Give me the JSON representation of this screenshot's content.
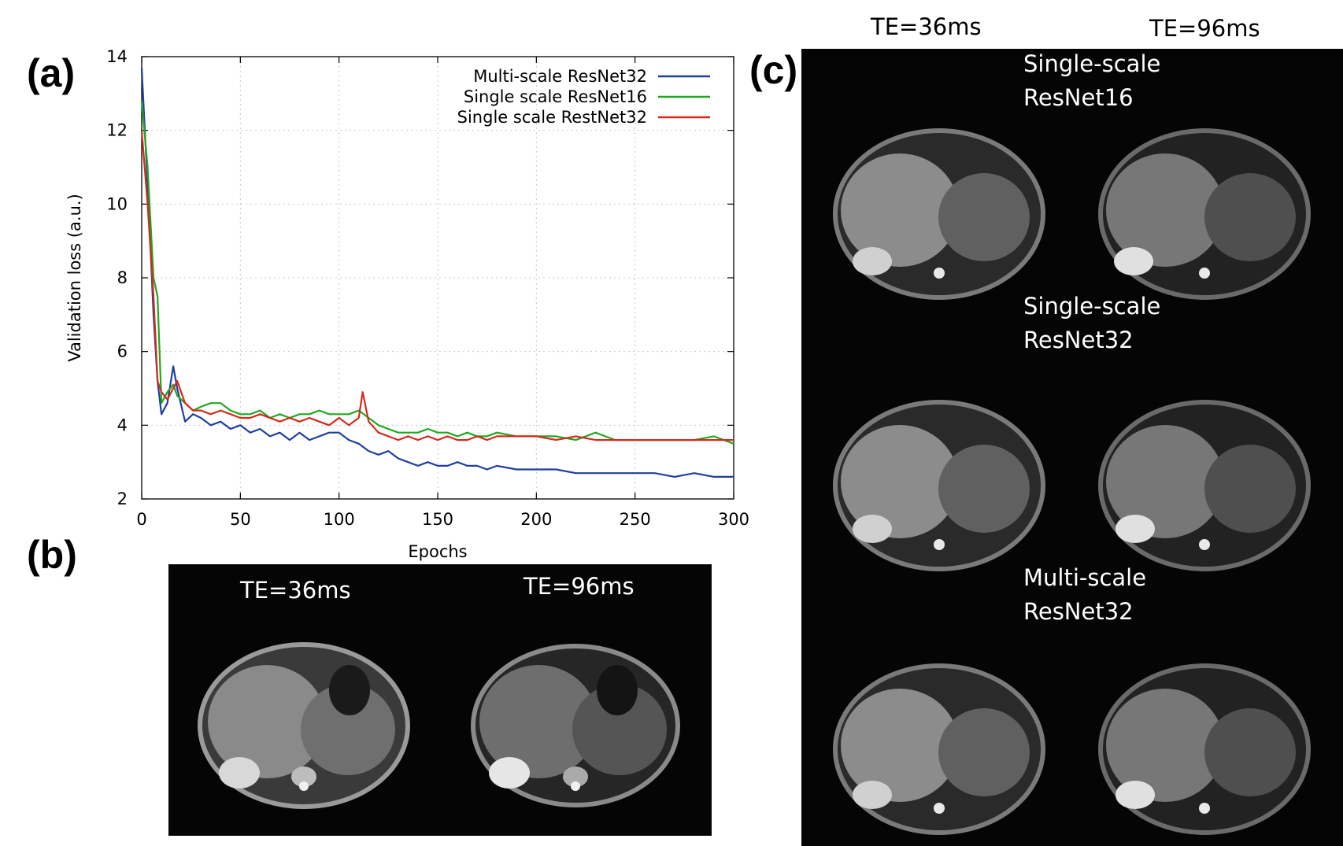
{
  "panels": {
    "a": "(a)",
    "b": "(b)",
    "c": "(c)"
  },
  "chart_data": {
    "type": "line",
    "xlabel": "Epochs",
    "ylabel": "Validation loss (a.u.)",
    "xlim": [
      0,
      300
    ],
    "ylim": [
      2,
      14
    ],
    "xticks": [
      0,
      50,
      100,
      150,
      200,
      250,
      300
    ],
    "yticks": [
      2,
      4,
      6,
      8,
      10,
      12,
      14
    ],
    "grid": true,
    "legend_position": "top-right",
    "series": [
      {
        "name": "Multi-scale ResNet32",
        "color": "#1f3f9e",
        "x": [
          0,
          3,
          6,
          8,
          10,
          13,
          16,
          18,
          22,
          26,
          30,
          35,
          40,
          45,
          50,
          55,
          60,
          65,
          70,
          75,
          80,
          85,
          90,
          95,
          100,
          105,
          110,
          115,
          120,
          125,
          130,
          135,
          140,
          145,
          150,
          155,
          160,
          165,
          170,
          175,
          180,
          190,
          200,
          210,
          220,
          230,
          240,
          250,
          260,
          270,
          280,
          290,
          300
        ],
        "y": [
          13.7,
          10.5,
          7.0,
          5.2,
          4.3,
          4.6,
          5.6,
          5.0,
          4.1,
          4.3,
          4.2,
          4.0,
          4.1,
          3.9,
          4.0,
          3.8,
          3.9,
          3.7,
          3.8,
          3.6,
          3.8,
          3.6,
          3.7,
          3.8,
          3.8,
          3.6,
          3.5,
          3.3,
          3.2,
          3.3,
          3.1,
          3.0,
          2.9,
          3.0,
          2.9,
          2.9,
          3.0,
          2.9,
          2.9,
          2.8,
          2.9,
          2.8,
          2.8,
          2.8,
          2.7,
          2.7,
          2.7,
          2.7,
          2.7,
          2.6,
          2.7,
          2.6,
          2.6
        ]
      },
      {
        "name": "Single scale ResNet16",
        "color": "#1fa81f",
        "x": [
          0,
          3,
          6,
          8,
          10,
          13,
          16,
          18,
          22,
          26,
          30,
          35,
          40,
          45,
          50,
          55,
          60,
          65,
          70,
          75,
          80,
          85,
          90,
          95,
          100,
          105,
          110,
          115,
          120,
          125,
          130,
          135,
          140,
          145,
          150,
          155,
          160,
          165,
          170,
          175,
          180,
          190,
          200,
          210,
          220,
          230,
          240,
          250,
          260,
          270,
          280,
          290,
          300
        ],
        "y": [
          12.8,
          11.0,
          8.0,
          7.5,
          4.6,
          4.9,
          5.1,
          4.8,
          4.6,
          4.4,
          4.5,
          4.6,
          4.6,
          4.4,
          4.3,
          4.3,
          4.4,
          4.2,
          4.3,
          4.2,
          4.3,
          4.3,
          4.4,
          4.3,
          4.3,
          4.3,
          4.4,
          4.2,
          4.0,
          3.9,
          3.8,
          3.8,
          3.8,
          3.9,
          3.8,
          3.8,
          3.7,
          3.8,
          3.7,
          3.7,
          3.8,
          3.7,
          3.7,
          3.7,
          3.6,
          3.8,
          3.6,
          3.6,
          3.6,
          3.6,
          3.6,
          3.7,
          3.5
        ]
      },
      {
        "name": "Single scale RestNet32",
        "color": "#d42a1c",
        "x": [
          0,
          3,
          6,
          8,
          10,
          13,
          16,
          18,
          22,
          26,
          30,
          35,
          40,
          45,
          50,
          55,
          60,
          65,
          70,
          75,
          80,
          85,
          90,
          95,
          100,
          105,
          110,
          112,
          115,
          120,
          125,
          130,
          135,
          140,
          145,
          150,
          155,
          160,
          165,
          170,
          175,
          180,
          190,
          200,
          210,
          220,
          230,
          240,
          250,
          260,
          270,
          280,
          290,
          300
        ],
        "y": [
          12.0,
          10.0,
          7.5,
          5.2,
          4.9,
          4.7,
          5.0,
          5.2,
          4.6,
          4.4,
          4.4,
          4.3,
          4.4,
          4.3,
          4.2,
          4.2,
          4.3,
          4.2,
          4.1,
          4.2,
          4.1,
          4.2,
          4.1,
          4.0,
          4.2,
          4.0,
          4.2,
          4.9,
          4.1,
          3.8,
          3.7,
          3.6,
          3.7,
          3.6,
          3.7,
          3.6,
          3.7,
          3.6,
          3.6,
          3.7,
          3.6,
          3.7,
          3.7,
          3.7,
          3.6,
          3.7,
          3.6,
          3.6,
          3.6,
          3.6,
          3.6,
          3.6,
          3.6,
          3.6
        ]
      }
    ]
  },
  "panel_b": {
    "left_title": "TE=36ms",
    "right_title": "TE=96ms"
  },
  "panel_c": {
    "col_titles": [
      "TE=36ms",
      "TE=96ms"
    ],
    "rows": [
      {
        "label_line1": "Single-scale",
        "label_line2": "ResNet16"
      },
      {
        "label_line1": "Single-scale",
        "label_line2": "ResNet32"
      },
      {
        "label_line1": "Multi-scale",
        "label_line2": "ResNet32"
      }
    ]
  }
}
